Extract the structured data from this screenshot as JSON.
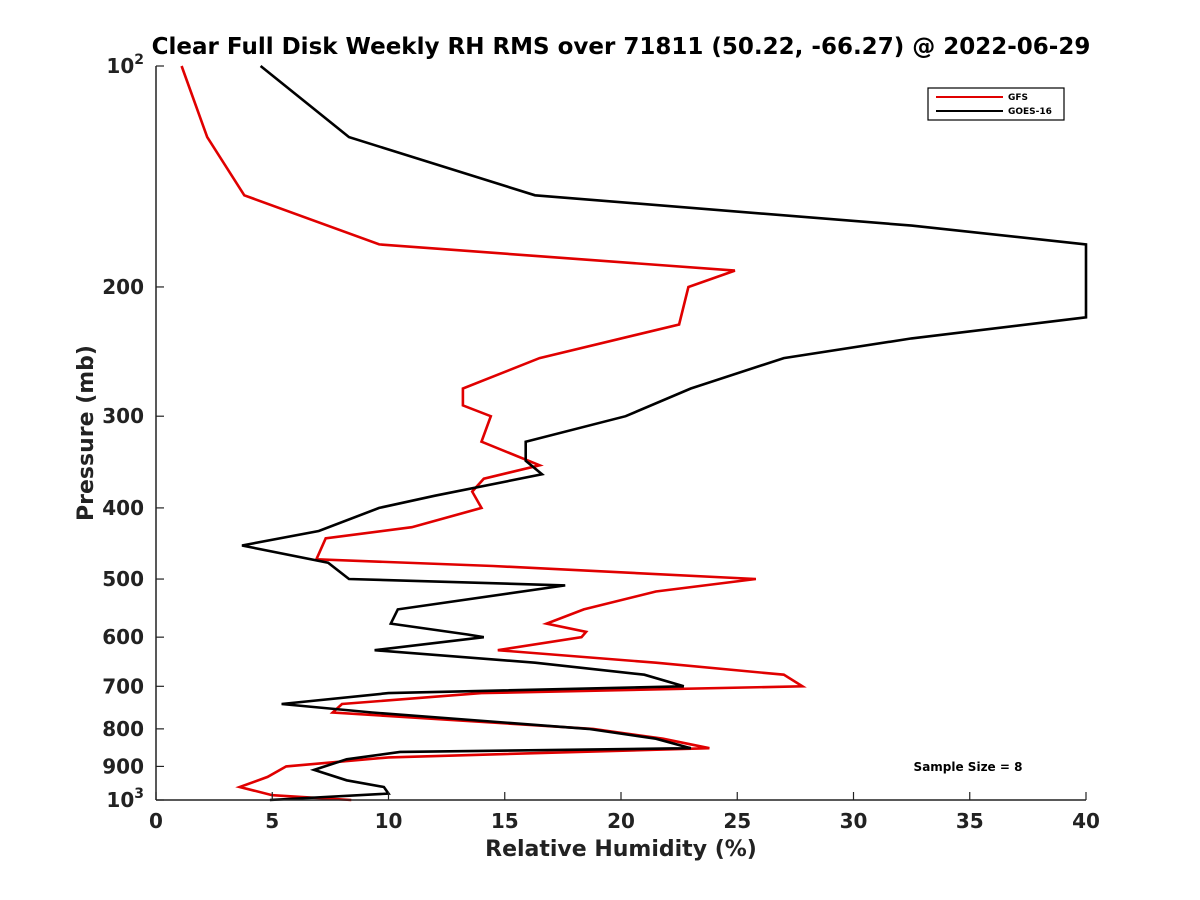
{
  "chart_data": {
    "type": "line",
    "title": "Clear Full Disk Weekly RH RMS over 71811 (50.22, -66.27) @ 2022-06-29",
    "xlabel": "Relative Humidity (%)",
    "ylabel": "Pressure (mb)",
    "xlim": [
      0,
      40
    ],
    "ylim": [
      100,
      1000
    ],
    "y_scale": "log",
    "y_reversed": true,
    "x_ticks": [
      "0",
      "5",
      "10",
      "15",
      "20",
      "25",
      "30",
      "35",
      "40"
    ],
    "y_ticks": [
      {
        "value": 100,
        "base": "10",
        "exp": "2"
      },
      {
        "value": 200,
        "label": "200"
      },
      {
        "value": 300,
        "label": "300"
      },
      {
        "value": 400,
        "label": "400"
      },
      {
        "value": 500,
        "label": "500"
      },
      {
        "value": 600,
        "label": "600"
      },
      {
        "value": 700,
        "label": "700"
      },
      {
        "value": 800,
        "label": "800"
      },
      {
        "value": 900,
        "label": "900"
      },
      {
        "value": 1000,
        "base": "10",
        "exp": "3"
      }
    ],
    "legend_position": "top-right",
    "annotation": "Sample Size = 8",
    "series": [
      {
        "name": "GFS",
        "color": "#e00000",
        "points": [
          [
            1.1,
            100
          ],
          [
            2.2,
            125
          ],
          [
            3.8,
            150
          ],
          [
            9.6,
            175
          ],
          [
            24.9,
            190
          ],
          [
            22.9,
            200
          ],
          [
            22.5,
            225
          ],
          [
            16.5,
            250
          ],
          [
            13.2,
            275
          ],
          [
            13.2,
            290
          ],
          [
            14.4,
            300
          ],
          [
            14.0,
            325
          ],
          [
            16.5,
            350
          ],
          [
            14.1,
            365
          ],
          [
            13.6,
            380
          ],
          [
            14.0,
            400
          ],
          [
            11.0,
            425
          ],
          [
            7.3,
            440
          ],
          [
            6.9,
            470
          ],
          [
            14.5,
            480
          ],
          [
            25.8,
            500
          ],
          [
            21.5,
            520
          ],
          [
            18.4,
            550
          ],
          [
            16.8,
            575
          ],
          [
            18.5,
            590
          ],
          [
            18.3,
            600
          ],
          [
            14.7,
            625
          ],
          [
            21.5,
            650
          ],
          [
            27.0,
            675
          ],
          [
            27.8,
            700
          ],
          [
            14.0,
            715
          ],
          [
            8.0,
            740
          ],
          [
            7.6,
            760
          ],
          [
            18.8,
            800
          ],
          [
            21.8,
            825
          ],
          [
            23.8,
            850
          ],
          [
            10.0,
            875
          ],
          [
            5.6,
            900
          ],
          [
            4.8,
            930
          ],
          [
            3.6,
            960
          ],
          [
            5.0,
            985
          ],
          [
            8.4,
            1000
          ]
        ]
      },
      {
        "name": "GOES-16",
        "color": "#000000",
        "points": [
          [
            4.5,
            100
          ],
          [
            8.3,
            125
          ],
          [
            16.3,
            150
          ],
          [
            32.5,
            165
          ],
          [
            40.0,
            175
          ],
          [
            40.0,
            220
          ],
          [
            32.5,
            235
          ],
          [
            27.0,
            250
          ],
          [
            23.0,
            275
          ],
          [
            20.2,
            300
          ],
          [
            15.9,
            325
          ],
          [
            15.9,
            345
          ],
          [
            16.6,
            360
          ],
          [
            12.0,
            385
          ],
          [
            9.6,
            400
          ],
          [
            7.0,
            430
          ],
          [
            3.7,
            450
          ],
          [
            7.4,
            475
          ],
          [
            8.3,
            500
          ],
          [
            17.6,
            510
          ],
          [
            10.4,
            550
          ],
          [
            10.1,
            575
          ],
          [
            13.4,
            595
          ],
          [
            14.1,
            600
          ],
          [
            9.4,
            625
          ],
          [
            16.3,
            650
          ],
          [
            21.0,
            675
          ],
          [
            22.7,
            700
          ],
          [
            10.0,
            715
          ],
          [
            5.4,
            740
          ],
          [
            9.3,
            760
          ],
          [
            18.6,
            800
          ],
          [
            21.5,
            825
          ],
          [
            23.0,
            850
          ],
          [
            10.5,
            860
          ],
          [
            8.2,
            880
          ],
          [
            6.8,
            910
          ],
          [
            8.2,
            940
          ],
          [
            9.8,
            960
          ],
          [
            10.0,
            980
          ],
          [
            4.9,
            1000
          ]
        ]
      }
    ]
  }
}
